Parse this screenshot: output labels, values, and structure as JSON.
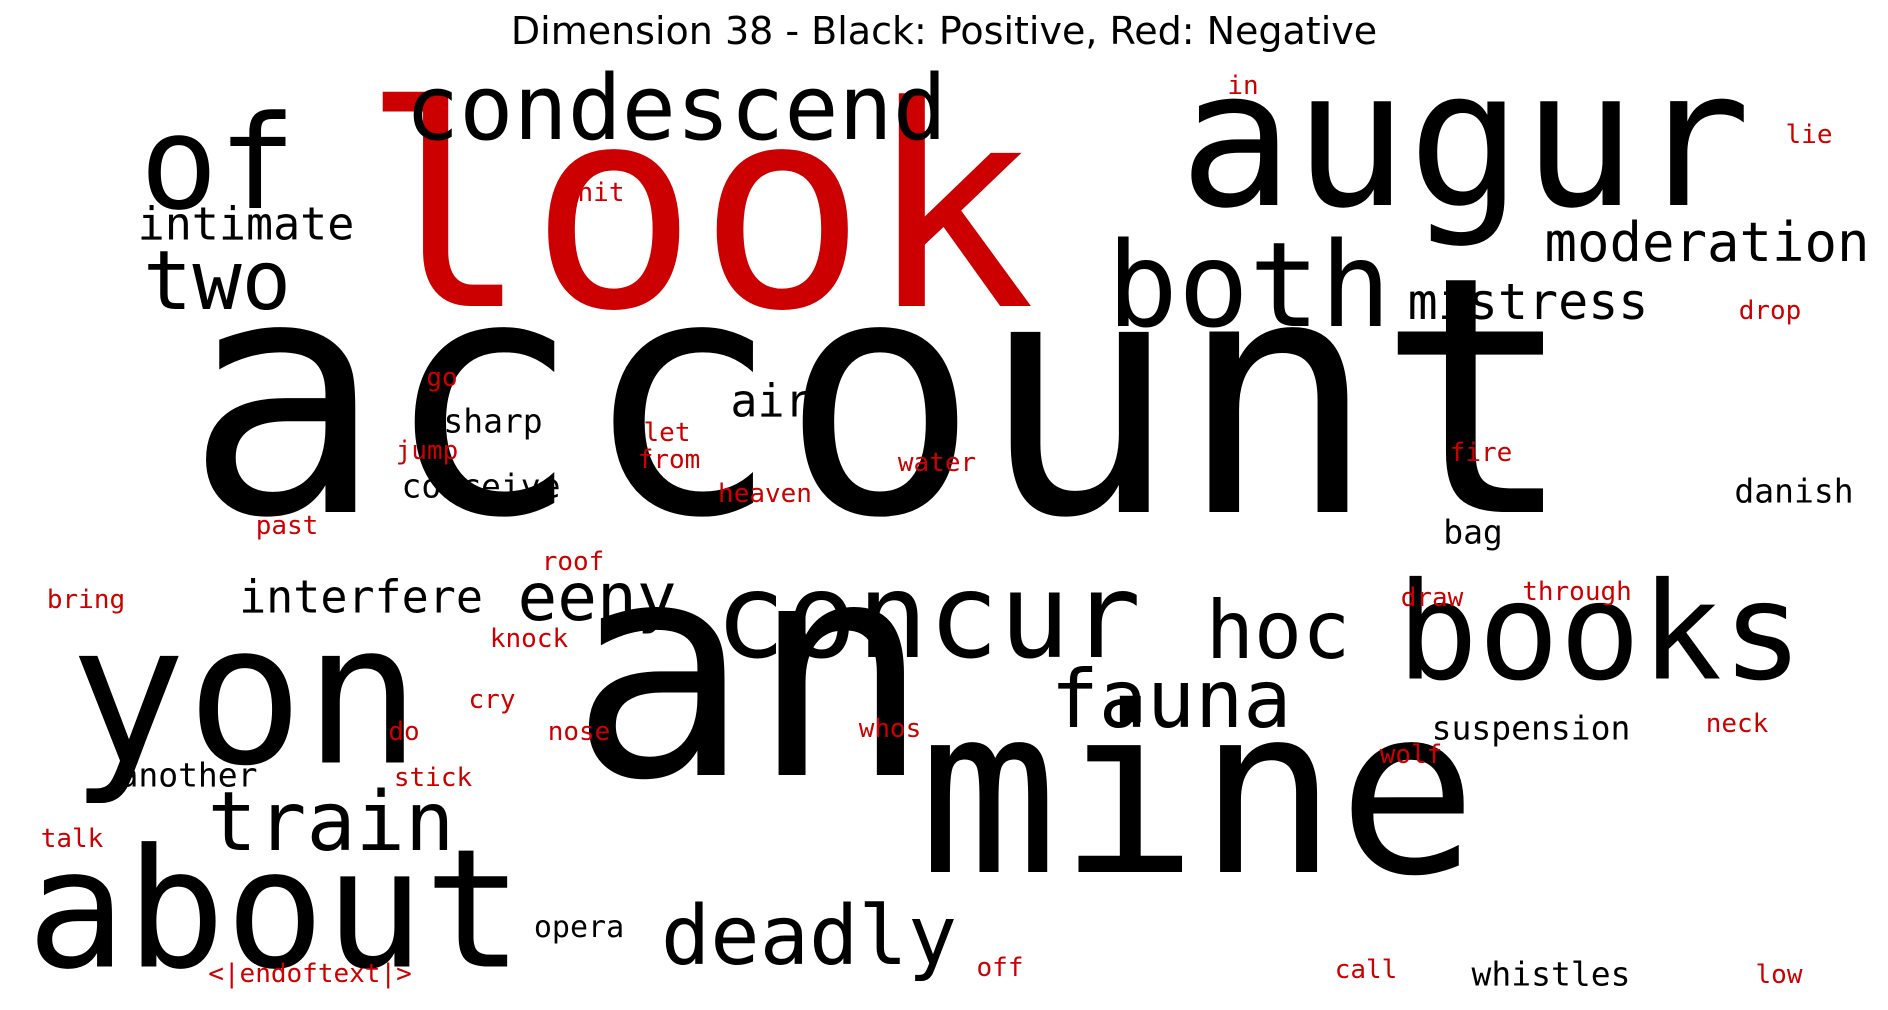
{
  "title": "Dimension 38 - Black: Positive, Red: Negative",
  "colors": {
    "positive": "#000000",
    "negative": "#cc0000"
  },
  "words": [
    {
      "text": "account",
      "sign": "positive"
    },
    {
      "text": "an",
      "sign": "positive"
    },
    {
      "text": "mine",
      "sign": "positive"
    },
    {
      "text": "augur",
      "sign": "positive"
    },
    {
      "text": "look",
      "sign": "negative"
    },
    {
      "text": "yon",
      "sign": "positive"
    },
    {
      "text": "books",
      "sign": "positive"
    },
    {
      "text": "about",
      "sign": "positive"
    },
    {
      "text": "of",
      "sign": "positive"
    },
    {
      "text": "both",
      "sign": "positive"
    },
    {
      "text": "concur",
      "sign": "positive"
    },
    {
      "text": "condescend",
      "sign": "positive"
    },
    {
      "text": "two",
      "sign": "positive"
    },
    {
      "text": "train",
      "sign": "positive"
    },
    {
      "text": "deadly",
      "sign": "positive"
    },
    {
      "text": "fauna",
      "sign": "positive"
    },
    {
      "text": "hoc",
      "sign": "positive"
    },
    {
      "text": "eeny",
      "sign": "positive"
    },
    {
      "text": "moderation",
      "sign": "positive"
    },
    {
      "text": "mistress",
      "sign": "positive"
    },
    {
      "text": "intimate",
      "sign": "positive"
    },
    {
      "text": "interfere",
      "sign": "positive"
    },
    {
      "text": "air",
      "sign": "positive"
    },
    {
      "text": "sharp",
      "sign": "positive"
    },
    {
      "text": "conceive",
      "sign": "positive"
    },
    {
      "text": "danish",
      "sign": "positive"
    },
    {
      "text": "bag",
      "sign": "positive"
    },
    {
      "text": "suspension",
      "sign": "positive"
    },
    {
      "text": "whistles",
      "sign": "positive"
    },
    {
      "text": "another",
      "sign": "positive"
    },
    {
      "text": "opera",
      "sign": "positive"
    },
    {
      "text": "in",
      "sign": "negative"
    },
    {
      "text": "lie",
      "sign": "negative"
    },
    {
      "text": "hit",
      "sign": "negative"
    },
    {
      "text": "drop",
      "sign": "negative"
    },
    {
      "text": "go",
      "sign": "negative"
    },
    {
      "text": "let",
      "sign": "negative"
    },
    {
      "text": "jump",
      "sign": "negative"
    },
    {
      "text": "from",
      "sign": "negative"
    },
    {
      "text": "water",
      "sign": "negative"
    },
    {
      "text": "fire",
      "sign": "negative"
    },
    {
      "text": "heaven",
      "sign": "negative"
    },
    {
      "text": "past",
      "sign": "negative"
    },
    {
      "text": "roof",
      "sign": "negative"
    },
    {
      "text": "bring",
      "sign": "negative"
    },
    {
      "text": "knock",
      "sign": "negative"
    },
    {
      "text": "draw",
      "sign": "negative"
    },
    {
      "text": "through",
      "sign": "negative"
    },
    {
      "text": "cry",
      "sign": "negative"
    },
    {
      "text": "do",
      "sign": "negative"
    },
    {
      "text": "nose",
      "sign": "negative"
    },
    {
      "text": "whos",
      "sign": "negative"
    },
    {
      "text": "neck",
      "sign": "negative"
    },
    {
      "text": "wolf",
      "sign": "negative"
    },
    {
      "text": "stick",
      "sign": "negative"
    },
    {
      "text": "talk",
      "sign": "negative"
    },
    {
      "text": "<|endoftext|>",
      "sign": "negative"
    },
    {
      "text": "off",
      "sign": "negative"
    },
    {
      "text": "call",
      "sign": "negative"
    },
    {
      "text": "low",
      "sign": "negative"
    }
  ]
}
